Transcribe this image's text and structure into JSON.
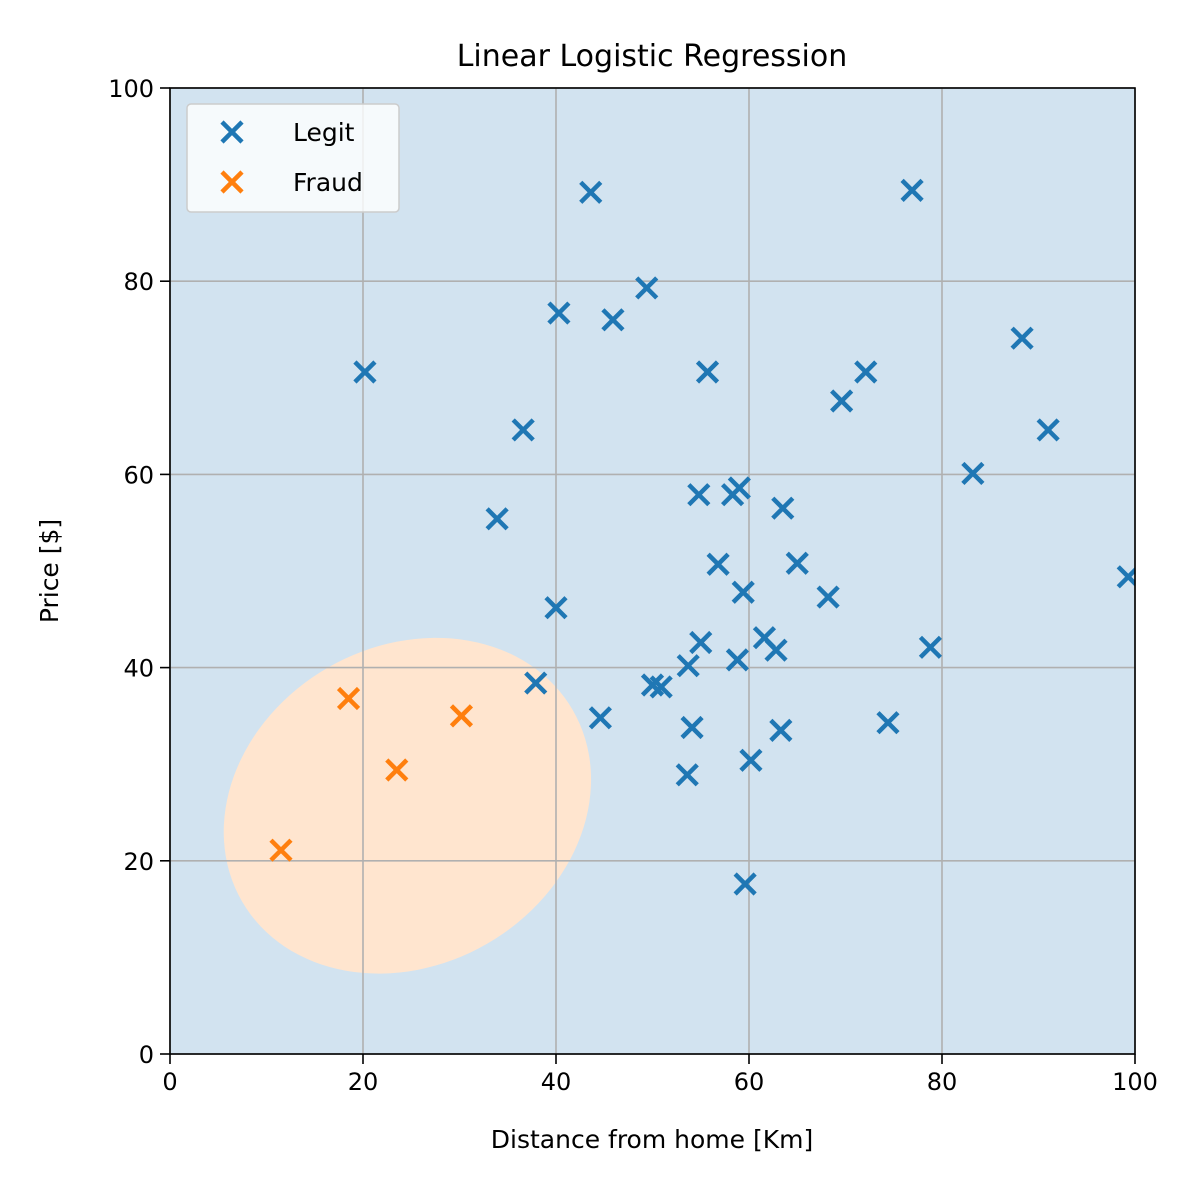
{
  "chart_data": {
    "type": "scatter",
    "title": "Linear Logistic Regression",
    "xlabel": "Distance from home [Km]",
    "ylabel": "Price [$]",
    "xlim": [
      0,
      100
    ],
    "ylim": [
      0,
      100
    ],
    "xticks": [
      "0",
      "20",
      "40",
      "60",
      "80",
      "100"
    ],
    "yticks": [
      "0",
      "20",
      "40",
      "60",
      "80",
      "100"
    ],
    "grid": true,
    "legend_position": "top-left",
    "colors": {
      "legit": "#1f77b4",
      "fraud": "#ff7f0e",
      "region_legit": "#d2e3f0",
      "region_fraud": "#ffe5cf",
      "grid": "#b0b0b0"
    },
    "decision_region": {
      "label_class": "Fraud",
      "center": [
        24.6,
        25.7
      ],
      "semi_axes": [
        19.8,
        16.5
      ],
      "rotation_deg": -30
    },
    "series": [
      {
        "name": "Legit",
        "marker": "x",
        "points": [
          [
            43.6,
            89.2
          ],
          [
            76.9,
            89.4
          ],
          [
            49.4,
            79.3
          ],
          [
            40.3,
            76.7
          ],
          [
            45.9,
            76.0
          ],
          [
            20.2,
            70.6
          ],
          [
            55.7,
            70.6
          ],
          [
            72.1,
            70.6
          ],
          [
            88.3,
            74.1
          ],
          [
            69.6,
            67.6
          ],
          [
            36.6,
            64.6
          ],
          [
            91.0,
            64.6
          ],
          [
            83.2,
            60.1
          ],
          [
            33.9,
            55.4
          ],
          [
            54.8,
            57.9
          ],
          [
            58.3,
            57.9
          ],
          [
            59.0,
            58.6
          ],
          [
            63.5,
            56.5
          ],
          [
            56.8,
            50.7
          ],
          [
            65.0,
            50.8
          ],
          [
            99.3,
            49.4
          ],
          [
            59.4,
            47.8
          ],
          [
            68.2,
            47.3
          ],
          [
            40.0,
            46.2
          ],
          [
            55.0,
            42.6
          ],
          [
            61.6,
            43.1
          ],
          [
            62.8,
            41.8
          ],
          [
            78.8,
            42.1
          ],
          [
            58.8,
            40.8
          ],
          [
            53.7,
            40.2
          ],
          [
            37.9,
            38.4
          ],
          [
            50.0,
            38.2
          ],
          [
            50.9,
            38.0
          ],
          [
            44.6,
            34.8
          ],
          [
            54.1,
            33.8
          ],
          [
            63.3,
            33.5
          ],
          [
            74.4,
            34.3
          ],
          [
            60.2,
            30.4
          ],
          [
            53.6,
            28.9
          ],
          [
            59.6,
            17.6
          ]
        ]
      },
      {
        "name": "Fraud",
        "marker": "x",
        "points": [
          [
            18.5,
            36.8
          ],
          [
            30.2,
            35.0
          ],
          [
            23.5,
            29.4
          ],
          [
            11.5,
            21.1
          ]
        ]
      }
    ]
  }
}
